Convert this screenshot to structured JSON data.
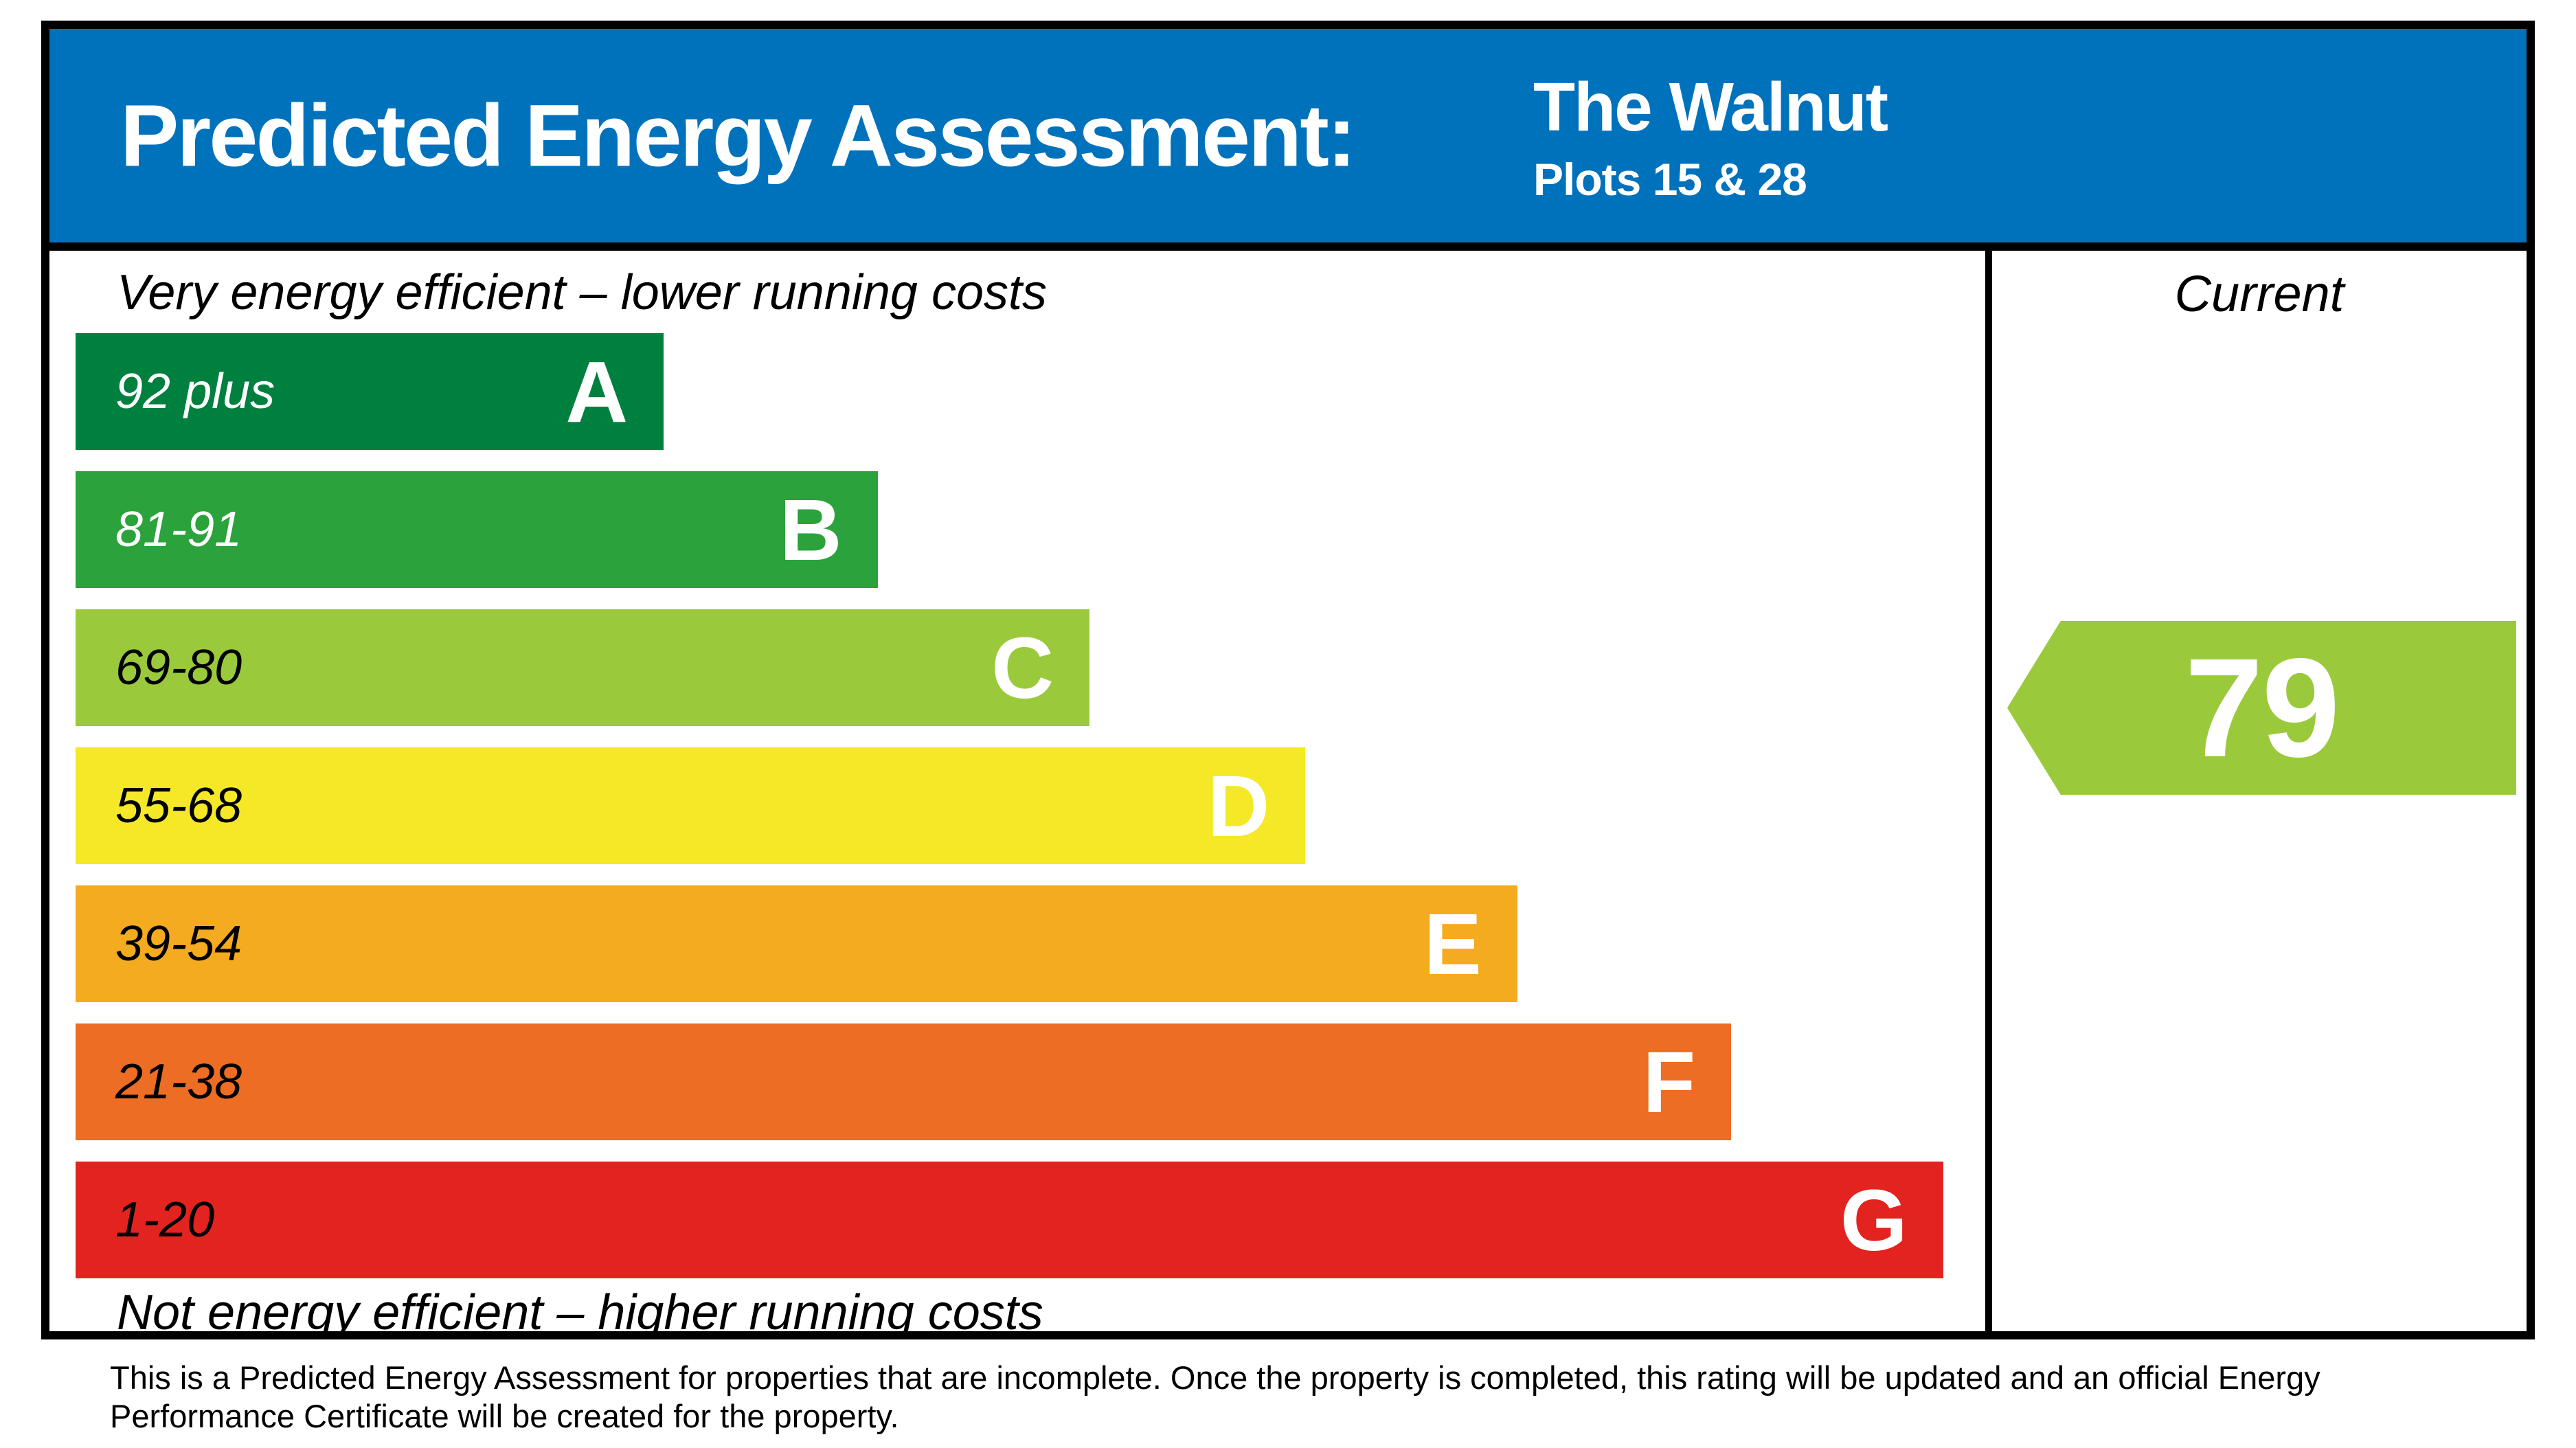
{
  "header": {
    "title": "Predicted Energy Assessment:",
    "property_name": "The Walnut",
    "plots_label": "Plots 15 & 28",
    "background_color": "#0072bc"
  },
  "chart_data": {
    "type": "bar",
    "title": "Predicted Energy Assessment",
    "top_caption": "Very energy efficient – lower running costs",
    "bottom_caption": "Not energy efficient – higher running costs",
    "current_column_header": "Current",
    "categories": [
      "A",
      "B",
      "C",
      "D",
      "E",
      "F",
      "G"
    ],
    "bands": [
      {
        "letter": "A",
        "range": "92 plus",
        "color": "#00803F",
        "label_color": "#ffffff",
        "width_pct": 30.8
      },
      {
        "letter": "B",
        "range": "81-91",
        "color": "#2BA23C",
        "label_color": "#ffffff",
        "width_pct": 42.0
      },
      {
        "letter": "C",
        "range": "69-80",
        "color": "#9ACA3C",
        "label_color": "#000000",
        "width_pct": 53.1
      },
      {
        "letter": "D",
        "range": "55-68",
        "color": "#F5E927",
        "label_color": "#000000",
        "width_pct": 64.4
      },
      {
        "letter": "E",
        "range": "39-54",
        "color": "#F5AB1F",
        "label_color": "#000000",
        "width_pct": 75.5
      },
      {
        "letter": "F",
        "range": "21-38",
        "color": "#EC6D23",
        "label_color": "#000000",
        "width_pct": 86.7
      },
      {
        "letter": "G",
        "range": "1-20",
        "color": "#E2231F",
        "label_color": "#000000",
        "width_pct": 97.8
      }
    ],
    "current_rating": {
      "value": "79",
      "band": "C",
      "color": "#9ACA3C"
    }
  },
  "footer": {
    "text": "This is a Predicted Energy Assessment for properties that are incomplete. Once the property is completed, this rating will be updated and an official Energy Performance Certificate will be created for the property."
  }
}
